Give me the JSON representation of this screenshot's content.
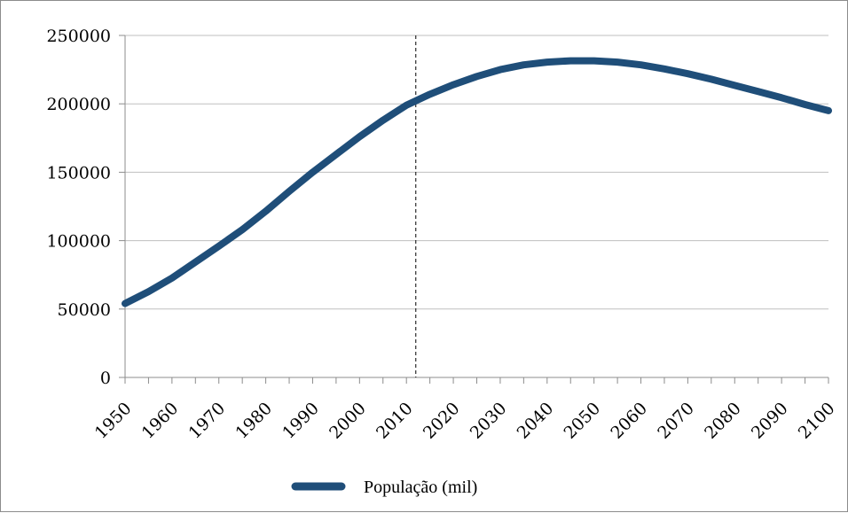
{
  "chart_data": {
    "type": "line",
    "x": [
      1950,
      1955,
      1960,
      1965,
      1970,
      1975,
      1980,
      1985,
      1990,
      1995,
      2000,
      2005,
      2010,
      2015,
      2020,
      2025,
      2030,
      2035,
      2040,
      2045,
      2050,
      2055,
      2060,
      2065,
      2070,
      2075,
      2080,
      2085,
      2090,
      2095,
      2100
    ],
    "series": [
      {
        "name": "População (mil)",
        "color": "#1f4e79",
        "values": [
          54000,
          62700,
          72700,
          84300,
          96000,
          108000,
          121500,
          136000,
          150000,
          163000,
          176000,
          188000,
          199000,
          207000,
          214000,
          220000,
          225000,
          228500,
          230500,
          231500,
          231500,
          230500,
          228500,
          225500,
          222000,
          218000,
          213500,
          209000,
          204500,
          199500,
          195000
        ]
      }
    ],
    "x_ticks": [
      "1950",
      "1960",
      "1970",
      "1980",
      "1990",
      "2000",
      "2010",
      "2020",
      "2030",
      "2040",
      "2050",
      "2060",
      "2070",
      "2080",
      "2090",
      "2100"
    ],
    "y_ticks": [
      "0",
      "50000",
      "100000",
      "150000",
      "200000",
      "250000"
    ],
    "ylim": [
      0,
      250000
    ],
    "xlim": [
      1950,
      2100
    ],
    "reference_line_x": 2012,
    "grid": "horizontal",
    "legend_position": "bottom",
    "title": "",
    "xlabel": "",
    "ylabel": ""
  }
}
